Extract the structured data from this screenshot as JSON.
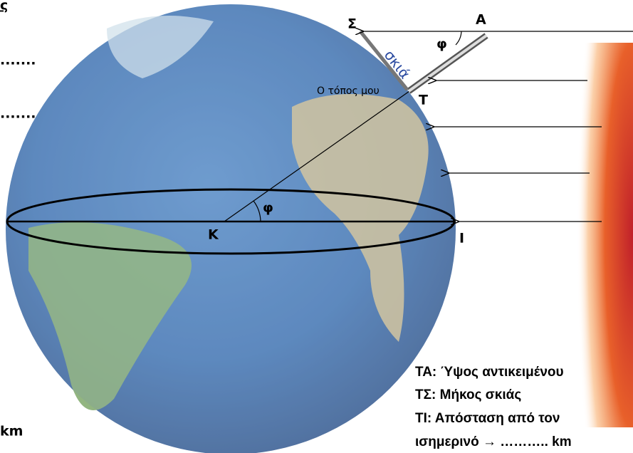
{
  "left_notes": {
    "heading": "ς",
    "blank_1": ".......",
    "blank_2": ".......",
    "unit": "km"
  },
  "labels": {
    "shadow_end": "Σ",
    "top": "Α",
    "shadow": "σκιά",
    "angle_top": "φ",
    "my_place": "Ο τόπος μου",
    "base": "Τ",
    "center": "Κ",
    "angle_center": "φ",
    "equator_point": "Ι"
  },
  "legend": {
    "line_1": "ΤΑ: Ύψος αντικειμένου",
    "line_2": "ΤΣ: Μήκος σκιάς",
    "line_3": "ΤΙ: Απόσταση από τον",
    "line_4": "ισημερινό → ……….. km"
  }
}
